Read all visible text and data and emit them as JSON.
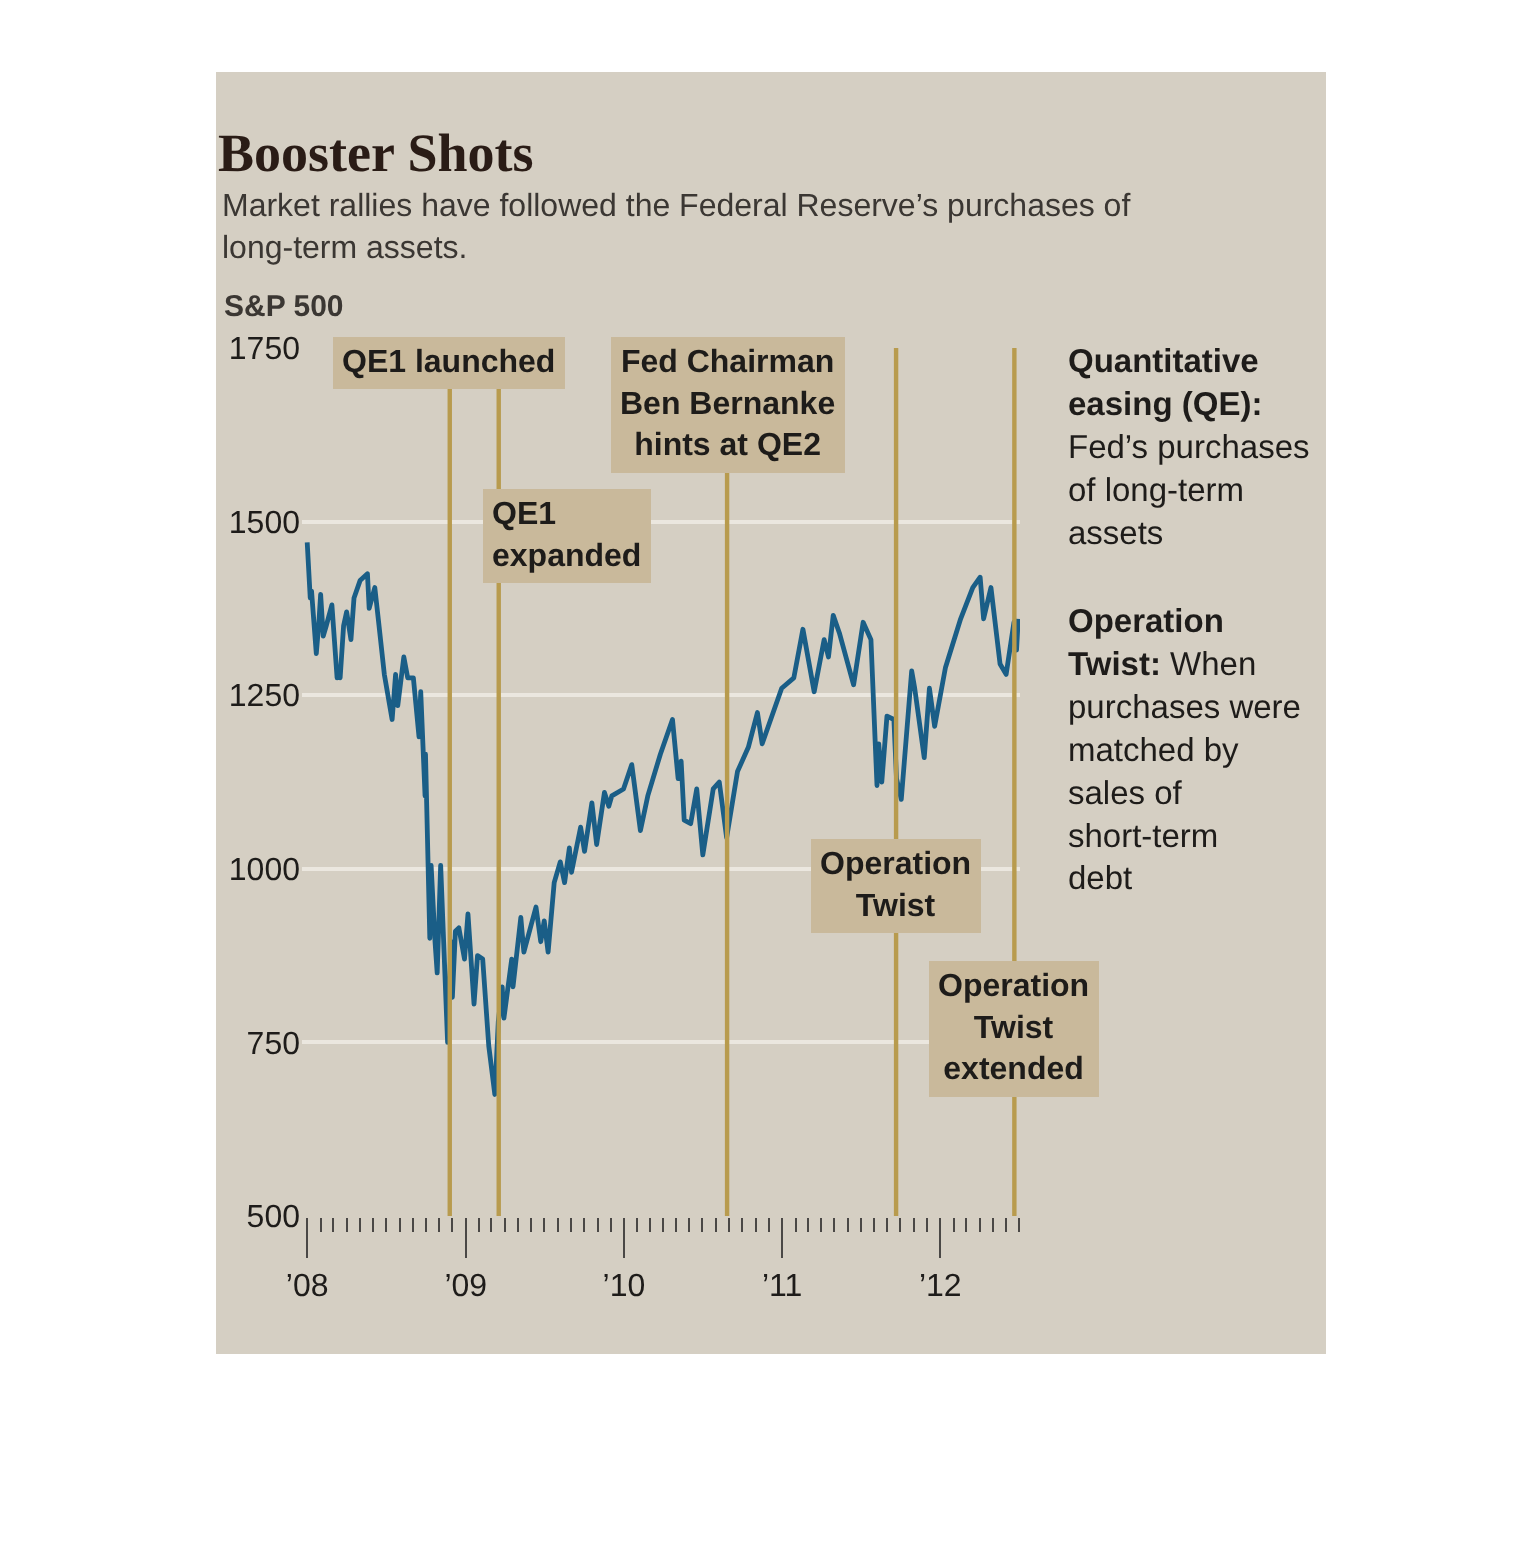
{
  "chart_data": {
    "type": "line",
    "title": "Booster Shots",
    "subtitle": "Market rallies have followed the Federal Reserve’s purchases of long-term assets.",
    "ylabel": "S&P 500",
    "x": [
      "2008-01-01",
      "2008-01-08",
      "2008-01-11",
      "2008-01-22",
      "2008-01-28",
      "2008-02-01",
      "2008-02-07",
      "2008-02-14",
      "2008-02-27",
      "2008-03-10",
      "2008-03-14",
      "2008-03-17",
      "2008-03-25",
      "2008-04-01",
      "2008-04-11",
      "2008-04-18",
      "2008-05-02",
      "2008-05-19",
      "2008-05-23",
      "2008-06-05",
      "2008-06-13",
      "2008-06-27",
      "2008-07-15",
      "2008-07-23",
      "2008-07-28",
      "2008-08-11",
      "2008-08-20",
      "2008-09-02",
      "2008-09-15",
      "2008-09-19",
      "2008-09-29",
      "2008-09-30",
      "2008-10-10",
      "2008-10-13",
      "2008-10-22",
      "2008-10-27",
      "2008-11-04",
      "2008-11-20",
      "2008-11-28",
      "2008-12-01",
      "2008-12-08",
      "2008-12-16",
      "2008-12-29",
      "2009-01-06",
      "2009-01-20",
      "2009-01-28",
      "2009-02-09",
      "2009-02-23",
      "2009-03-09",
      "2009-03-17",
      "2009-03-26",
      "2009-03-30",
      "2009-04-17",
      "2009-04-20",
      "2009-05-08",
      "2009-05-15",
      "2009-06-12",
      "2009-06-23",
      "2009-07-01",
      "2009-07-10",
      "2009-07-24",
      "2009-08-07",
      "2009-08-17",
      "2009-08-28",
      "2009-09-02",
      "2009-09-23",
      "2009-10-02",
      "2009-10-19",
      "2009-10-30",
      "2009-11-17",
      "2009-11-27",
      "2009-12-04",
      "2009-12-31",
      "2010-01-19",
      "2010-02-08",
      "2010-02-25",
      "2010-03-26",
      "2010-04-23",
      "2010-05-06",
      "2010-05-13",
      "2010-05-20",
      "2010-06-04",
      "2010-06-18",
      "2010-07-02",
      "2010-07-26",
      "2010-08-09",
      "2010-08-26",
      "2010-09-20",
      "2010-10-15",
      "2010-11-05",
      "2010-11-16",
      "2010-12-31",
      "2011-01-28",
      "2011-02-18",
      "2011-03-16",
      "2011-04-08",
      "2011-04-18",
      "2011-04-29",
      "2011-05-13",
      "2011-06-15",
      "2011-07-07",
      "2011-07-25",
      "2011-08-08",
      "2011-08-12",
      "2011-08-19",
      "2011-08-31",
      "2011-09-16",
      "2011-09-22",
      "2011-10-03",
      "2011-10-27",
      "2011-11-03",
      "2011-11-25",
      "2011-12-07",
      "2011-12-19",
      "2012-01-13",
      "2012-02-17",
      "2012-03-16",
      "2012-04-02",
      "2012-04-10",
      "2012-04-27",
      "2012-05-18",
      "2012-06-01",
      "2012-06-19",
      "2012-06-25",
      "2012-06-29"
    ],
    "series": [
      {
        "color": "#1a5e87",
        "values": [
          1470,
          1390,
          1400,
          1310,
          1355,
          1395,
          1335,
          1350,
          1380,
          1275,
          1290,
          1275,
          1350,
          1370,
          1330,
          1390,
          1415,
          1425,
          1375,
          1405,
          1360,
          1280,
          1215,
          1280,
          1235,
          1305,
          1275,
          1275,
          1190,
          1255,
          1105,
          1165,
          900,
          1005,
          895,
          850,
          1005,
          750,
          895,
          815,
          910,
          915,
          870,
          935,
          805,
          875,
          870,
          745,
          675,
          780,
          830,
          785,
          870,
          830,
          930,
          880,
          945,
          895,
          925,
          880,
          980,
          1010,
          980,
          1030,
          995,
          1060,
          1025,
          1095,
          1035,
          1110,
          1090,
          1105,
          1115,
          1150,
          1055,
          1105,
          1165,
          1215,
          1130,
          1155,
          1070,
          1065,
          1115,
          1020,
          1115,
          1125,
          1045,
          1140,
          1175,
          1225,
          1180,
          1260,
          1275,
          1345,
          1255,
          1330,
          1305,
          1365,
          1340,
          1265,
          1355,
          1330,
          1120,
          1180,
          1125,
          1220,
          1215,
          1130,
          1100,
          1285,
          1260,
          1160,
          1260,
          1205,
          1290,
          1360,
          1405,
          1420,
          1360,
          1405,
          1295,
          1280,
          1355,
          1315,
          1360
        ]
      }
    ],
    "xlim": [
      "2007-12-20",
      "2012-07-03"
    ],
    "xticks": [
      {
        "value": "2008-01-01",
        "label": "’08"
      },
      {
        "value": "2008-02-01",
        "label": null
      },
      {
        "value": "2008-03-01",
        "label": null
      },
      {
        "value": "2008-04-01",
        "label": null
      },
      {
        "value": "2008-05-01",
        "label": null
      },
      {
        "value": "2008-06-01",
        "label": null
      },
      {
        "value": "2008-07-01",
        "label": null
      },
      {
        "value": "2008-08-01",
        "label": null
      },
      {
        "value": "2008-09-01",
        "label": null
      },
      {
        "value": "2008-10-01",
        "label": null
      },
      {
        "value": "2008-11-01",
        "label": null
      },
      {
        "value": "2008-12-01",
        "label": null
      },
      {
        "value": "2009-01-01",
        "label": "’09"
      },
      {
        "value": "2009-02-01",
        "label": null
      },
      {
        "value": "2009-03-01",
        "label": null
      },
      {
        "value": "2009-04-01",
        "label": null
      },
      {
        "value": "2009-05-01",
        "label": null
      },
      {
        "value": "2009-06-01",
        "label": null
      },
      {
        "value": "2009-07-01",
        "label": null
      },
      {
        "value": "2009-08-01",
        "label": null
      },
      {
        "value": "2009-09-01",
        "label": null
      },
      {
        "value": "2009-10-01",
        "label": null
      },
      {
        "value": "2009-11-01",
        "label": null
      },
      {
        "value": "2009-12-01",
        "label": null
      },
      {
        "value": "2010-01-01",
        "label": "’10"
      },
      {
        "value": "2010-02-01",
        "label": null
      },
      {
        "value": "2010-03-01",
        "label": null
      },
      {
        "value": "2010-04-01",
        "label": null
      },
      {
        "value": "2010-05-01",
        "label": null
      },
      {
        "value": "2010-06-01",
        "label": null
      },
      {
        "value": "2010-07-01",
        "label": null
      },
      {
        "value": "2010-08-01",
        "label": null
      },
      {
        "value": "2010-09-01",
        "label": null
      },
      {
        "value": "2010-10-01",
        "label": null
      },
      {
        "value": "2010-11-01",
        "label": null
      },
      {
        "value": "2010-12-01",
        "label": null
      },
      {
        "value": "2011-01-01",
        "label": "’11"
      },
      {
        "value": "2011-02-01",
        "label": null
      },
      {
        "value": "2011-03-01",
        "label": null
      },
      {
        "value": "2011-04-01",
        "label": null
      },
      {
        "value": "2011-05-01",
        "label": null
      },
      {
        "value": "2011-06-01",
        "label": null
      },
      {
        "value": "2011-07-01",
        "label": null
      },
      {
        "value": "2011-08-01",
        "label": null
      },
      {
        "value": "2011-09-01",
        "label": null
      },
      {
        "value": "2011-10-01",
        "label": null
      },
      {
        "value": "2011-11-01",
        "label": null
      },
      {
        "value": "2011-12-01",
        "label": null
      },
      {
        "value": "2012-01-01",
        "label": "’12"
      },
      {
        "value": "2012-02-01",
        "label": null
      },
      {
        "value": "2012-03-01",
        "label": null
      },
      {
        "value": "2012-04-01",
        "label": null
      },
      {
        "value": "2012-05-01",
        "label": null
      },
      {
        "value": "2012-06-01",
        "label": null
      },
      {
        "value": "2012-07-01",
        "label": null
      }
    ],
    "ylim": [
      500,
      1750
    ],
    "yticks": [
      500,
      750,
      1000,
      1250,
      1500,
      1750
    ],
    "grid": "y",
    "ref_lines": [
      {
        "axis": "x",
        "value": "2008-11-25",
        "label": "QE1 launched",
        "color": "#b89b4e"
      },
      {
        "axis": "x",
        "value": "2009-03-18",
        "label": "QE1 expanded",
        "color": "#b89b4e"
      },
      {
        "axis": "x",
        "value": "2010-08-27",
        "label": "Fed Chairman Ben Bernanke hints at QE2",
        "color": "#b89b4e"
      },
      {
        "axis": "x",
        "value": "2011-09-21",
        "label": "Operation Twist",
        "color": "#b89b4e"
      },
      {
        "axis": "x",
        "value": "2012-06-20",
        "label": "Operation Twist extended",
        "color": "#b89b4e"
      }
    ],
    "annotations": [
      "Quantitative easing (QE): Fed’s purchases of long-term assets",
      "Operation Twist: When purchases were matched by sales of short-term debt"
    ]
  }
}
